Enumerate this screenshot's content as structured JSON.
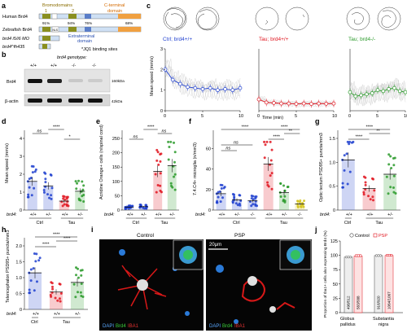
{
  "panel_labels": [
    "a",
    "b",
    "c",
    "d",
    "e",
    "f",
    "g",
    "h",
    "i",
    "j"
  ],
  "a": {
    "rows": [
      "Human Brd4",
      "Zebrafish Brd4",
      "brd4 i5/i6 MO",
      "brd4^fh435"
    ],
    "bromo_title": "Bromodomains",
    "bromo_nums": [
      "1",
      "2"
    ],
    "cterm_title": "C-terminal",
    "cterm_title2": "domain",
    "extra_title": "Extraterminal",
    "extra_title2": "domain",
    "nls": "NLS",
    "identity": [
      "91%",
      "94%",
      "76%",
      "68%"
    ],
    "jq1_note": "*JQ1 binding sites"
  },
  "b": {
    "title": "brd4 genotype:",
    "genotypes": [
      "+/+",
      "+/+",
      "-/-",
      "-/-"
    ],
    "rows": [
      "Brd4",
      "β-actin"
    ],
    "sizes": [
      "160kDa",
      "42kDa"
    ]
  },
  "c": {
    "groups": [
      {
        "label": "Ctrl; brd4+/+",
        "color": "#1f3fcf"
      },
      {
        "label": "Tau; brd4+/+",
        "color": "#e0141e"
      },
      {
        "label": "Tau; brd4-/-",
        "color": "#2a9a2a"
      }
    ],
    "ylabel": "Mean speed (mm/s)",
    "xlabel": "Time (min)",
    "yticks": [
      "0",
      "1",
      "2",
      "3"
    ],
    "xticks": [
      "0",
      "5",
      "10"
    ]
  },
  "chart_data": [
    {
      "type": "line",
      "panel": "c",
      "title": "",
      "xlabel": "Time (min)",
      "ylabel": "Mean speed (mm/s)",
      "ylim": [
        0,
        3
      ],
      "xlim": [
        0,
        10
      ],
      "x": [
        0,
        1,
        2,
        3,
        4,
        5,
        6,
        7,
        8,
        9,
        10
      ],
      "series": [
        {
          "name": "Ctrl; brd4+/+",
          "values": [
            2.0,
            1.5,
            1.3,
            1.15,
            1.1,
            1.05,
            1.1,
            1.0,
            1.05,
            1.0,
            1.1
          ]
        },
        {
          "name": "Tau; brd4+/+",
          "values": [
            0.55,
            0.4,
            0.38,
            0.35,
            0.35,
            0.33,
            0.35,
            0.33,
            0.35,
            0.34,
            0.35
          ]
        },
        {
          "name": "Tau; brd4-/-",
          "values": [
            0.9,
            0.7,
            0.75,
            0.8,
            0.85,
            1.0,
            0.95,
            1.05,
            1.1,
            0.95,
            0.9
          ]
        }
      ]
    },
    {
      "type": "bar",
      "panel": "d",
      "ylabel": "Mean speed (mm/s)",
      "ylim": [
        0,
        4
      ],
      "yticks": [
        "0",
        "1",
        "2",
        "3",
        "4"
      ],
      "categories": [
        "Ctrl +/+",
        "Ctrl +/-",
        "Tau +/+",
        "Tau +/-"
      ],
      "values": [
        1.6,
        1.35,
        0.5,
        1.05
      ],
      "colors": [
        "#1f3fcf",
        "#1f3fcf",
        "#e0141e",
        "#2a9a2a"
      ],
      "group_labels": [
        "Ctrl",
        "Tau"
      ],
      "sig": [
        "ns",
        "****",
        "*"
      ]
    },
    {
      "type": "bar",
      "panel": "e",
      "ylabel": "Acridine Orange+ cells (n/spinal cord)",
      "ylim": [
        0,
        250
      ],
      "yticks": [
        "0",
        "50",
        "100",
        "150",
        "200",
        "250"
      ],
      "categories": [
        "Ctrl +/+",
        "Ctrl +/-",
        "Tau +/+",
        "Tau +/-"
      ],
      "values": [
        10,
        12,
        135,
        155
      ],
      "colors": [
        "#1f3fcf",
        "#1f3fcf",
        "#e0141e",
        "#2a9a2a"
      ],
      "group_labels": [
        "Ctrl",
        "Tau"
      ],
      "sig": [
        "ns",
        "****",
        "ns"
      ]
    },
    {
      "type": "bar",
      "panel": "f",
      "ylabel": "7.4.C4+ microglia (n/mm3)",
      "ylim": [
        0,
        70
      ],
      "yticks": [
        "0",
        "20",
        "40",
        "60"
      ],
      "categories": [
        "Ctrl +/+",
        "Ctrl +/-",
        "Ctrl -/-",
        "Tau +/+",
        "Tau +/-",
        "Tau -/-"
      ],
      "values": [
        16,
        10,
        9,
        45,
        17,
        6
      ],
      "colors": [
        "#1f3fcf",
        "#1f3fcf",
        "#1f3fcf",
        "#e0141e",
        "#2a9a2a",
        "#d4c31a"
      ],
      "group_labels": [
        "Ctrl",
        "Tau"
      ],
      "sig": [
        "ns",
        "ns",
        "****",
        "****",
        "****",
        "**"
      ]
    },
    {
      "type": "bar",
      "panel": "g",
      "ylabel": "Optic tectum PSD95+ puncta/mm3",
      "ylim": [
        0,
        1.5
      ],
      "yticks": [
        "0",
        "0.5",
        "1.0",
        "1.5"
      ],
      "categories": [
        "Ctrl +/+",
        "Tau +/+",
        "Tau +/-"
      ],
      "values": [
        1.05,
        0.45,
        0.75
      ],
      "colors": [
        "#1f3fcf",
        "#e0141e",
        "#2a9a2a"
      ],
      "group_labels": [
        "Ctrl",
        "Tau"
      ],
      "sig": [
        "****",
        "****",
        "**"
      ]
    },
    {
      "type": "bar",
      "panel": "h",
      "ylabel": "Telencephalon PSD95+ puncta/mm3",
      "ylim": [
        0,
        2
      ],
      "yticks": [
        "0",
        "0.5",
        "1.0",
        "1.5",
        "2.0"
      ],
      "categories": [
        "Ctrl +/+",
        "Tau +/+",
        "Tau +/-"
      ],
      "values": [
        1.15,
        0.55,
        0.85
      ],
      "colors": [
        "#1f3fcf",
        "#e0141e",
        "#2a9a2a"
      ],
      "group_labels": [
        "Ctrl",
        "Tau"
      ],
      "sig": [
        "****",
        "****",
        "****"
      ]
    },
    {
      "type": "bar",
      "panel": "j",
      "ylabel": "Proportion of Iba1+ cells also expressing Brd4 (%)",
      "ylim": [
        0,
        125
      ],
      "yticks": [
        "0",
        "25",
        "50",
        "75",
        "100",
        "125"
      ],
      "categories": [
        "Globus pallidus Control",
        "Globus pallidus PSP",
        "Substantia nigra Control",
        "Substantia nigra PSP"
      ],
      "values": [
        97,
        99,
        99.6,
        99.7
      ],
      "counts": [
        "498/512",
        "583/588",
        "916/920",
        "1064/1067"
      ],
      "series_names": [
        "Control",
        "PSP"
      ],
      "regions": [
        "Globus pallidus",
        "Substantia nigra"
      ]
    }
  ],
  "i": {
    "titles": [
      "Control",
      "PSP"
    ],
    "scale": "20μm",
    "channels": [
      "DAPI",
      "Brd4",
      "IBA1"
    ]
  },
  "brd4_label": "brd4:"
}
